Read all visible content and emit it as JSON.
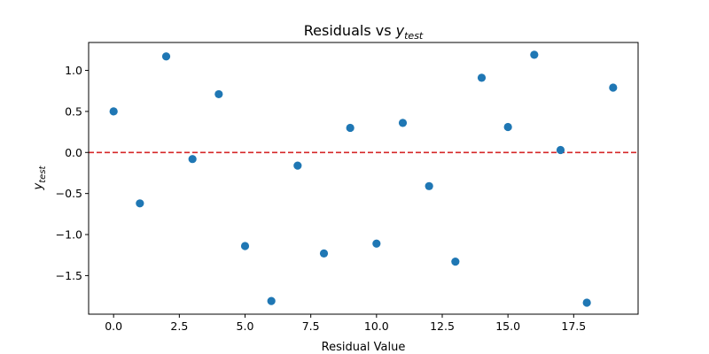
{
  "chart_data": {
    "type": "scatter",
    "title": {
      "prefix": "Residuals vs ",
      "var": "y",
      "sub": "test"
    },
    "xlabel": "Residual Value",
    "ylabel": {
      "var": "y",
      "sub": "test"
    },
    "xlim": [
      -0.95,
      19.95
    ],
    "ylim": [
      -1.97,
      1.34
    ],
    "x_ticks": [
      0.0,
      2.5,
      5.0,
      7.5,
      10.0,
      12.5,
      15.0,
      17.5
    ],
    "x_tick_labels": [
      "0.0",
      "2.5",
      "5.0",
      "7.5",
      "10.0",
      "12.5",
      "15.0",
      "17.5"
    ],
    "y_ticks": [
      -1.5,
      -1.0,
      -0.5,
      0.0,
      0.5,
      1.0
    ],
    "y_tick_labels": [
      "−1.5",
      "−1.0",
      "−0.5",
      "0.0",
      "0.5",
      "1.0"
    ],
    "grid": false,
    "legend": "none",
    "marker_color": "#1f77b4",
    "reference_line": {
      "y": 0.0,
      "color": "#d62728",
      "style": "dashed"
    },
    "x": [
      0,
      1,
      2,
      3,
      4,
      5,
      6,
      7,
      8,
      9,
      10,
      11,
      12,
      13,
      14,
      15,
      16,
      17,
      18,
      19
    ],
    "y": [
      0.5,
      -0.62,
      1.17,
      -0.08,
      0.71,
      -1.14,
      -1.81,
      -0.16,
      -1.23,
      0.3,
      -1.11,
      0.36,
      -0.41,
      -1.33,
      0.91,
      0.31,
      1.19,
      0.03,
      -1.83,
      0.79
    ]
  }
}
